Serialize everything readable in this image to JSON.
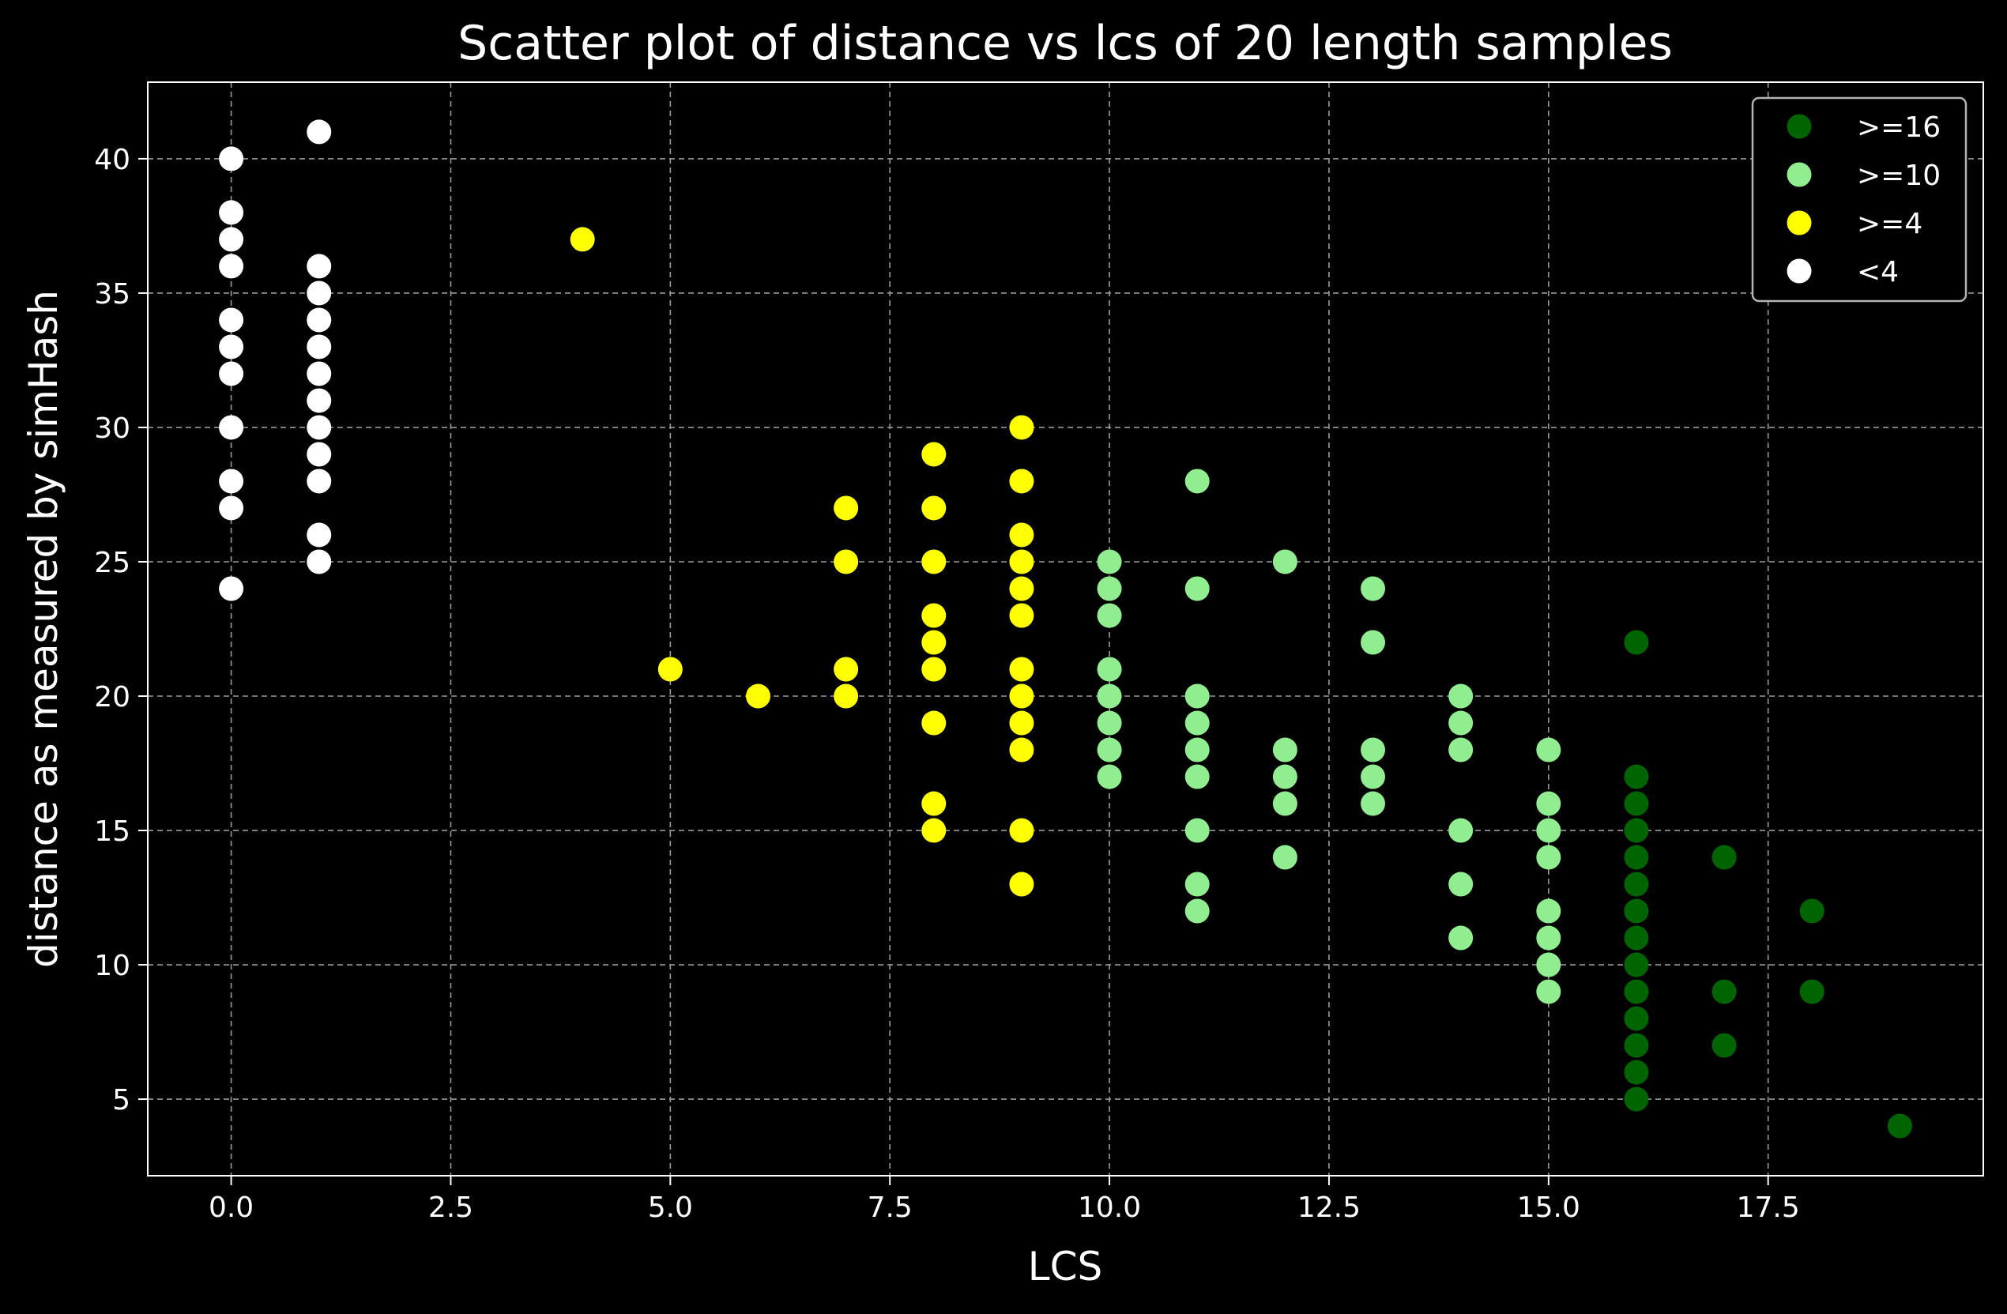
{
  "chart_data": {
    "type": "scatter",
    "title": "Scatter plot of distance vs lcs of 20 length samples",
    "xlabel": "LCS",
    "ylabel": "distance as measured by simHash",
    "xlim": [
      -0.95,
      19.95
    ],
    "ylim": [
      2.15,
      42.85
    ],
    "xticks": [
      0,
      2.5,
      5,
      7.5,
      10,
      12.5,
      15,
      17.5
    ],
    "xtick_labels": [
      "0.0",
      "2.5",
      "5.0",
      "7.5",
      "10.0",
      "12.5",
      "15.0",
      "17.5"
    ],
    "yticks": [
      5,
      10,
      15,
      20,
      25,
      30,
      35,
      40
    ],
    "ytick_labels": [
      "5",
      "10",
      "15",
      "20",
      "25",
      "30",
      "35",
      "40"
    ],
    "grid": true,
    "legend_position": "top-right",
    "background": "#000000",
    "series": [
      {
        "name": ">=16",
        "color": "#006400",
        "points": [
          [
            16,
            22
          ],
          [
            16,
            17
          ],
          [
            16,
            16
          ],
          [
            16,
            15
          ],
          [
            16,
            14
          ],
          [
            16,
            13
          ],
          [
            16,
            12
          ],
          [
            16,
            11
          ],
          [
            16,
            10
          ],
          [
            16,
            9
          ],
          [
            16,
            8
          ],
          [
            16,
            7
          ],
          [
            16,
            6
          ],
          [
            16,
            5
          ],
          [
            17,
            14
          ],
          [
            17,
            9
          ],
          [
            17,
            7
          ],
          [
            18,
            12
          ],
          [
            18,
            9
          ],
          [
            19,
            4
          ]
        ]
      },
      {
        "name": ">=10",
        "color": "#90ee90",
        "points": [
          [
            10,
            25
          ],
          [
            10,
            24
          ],
          [
            10,
            23
          ],
          [
            10,
            21
          ],
          [
            10,
            20
          ],
          [
            10,
            19
          ],
          [
            10,
            18
          ],
          [
            10,
            17
          ],
          [
            11,
            28
          ],
          [
            11,
            24
          ],
          [
            11,
            20
          ],
          [
            11,
            19
          ],
          [
            11,
            18
          ],
          [
            11,
            17
          ],
          [
            11,
            15
          ],
          [
            11,
            13
          ],
          [
            11,
            12
          ],
          [
            12,
            25
          ],
          [
            12,
            18
          ],
          [
            12,
            17
          ],
          [
            12,
            16
          ],
          [
            12,
            14
          ],
          [
            13,
            24
          ],
          [
            13,
            22
          ],
          [
            13,
            18
          ],
          [
            13,
            17
          ],
          [
            13,
            16
          ],
          [
            14,
            20
          ],
          [
            14,
            19
          ],
          [
            14,
            18
          ],
          [
            14,
            15
          ],
          [
            14,
            13
          ],
          [
            14,
            11
          ],
          [
            15,
            18
          ],
          [
            15,
            16
          ],
          [
            15,
            15
          ],
          [
            15,
            14
          ],
          [
            15,
            12
          ],
          [
            15,
            11
          ],
          [
            15,
            10
          ],
          [
            15,
            9
          ]
        ]
      },
      {
        "name": ">=4",
        "color": "#ffff00",
        "points": [
          [
            4,
            37
          ],
          [
            5,
            21
          ],
          [
            6,
            20
          ],
          [
            7,
            27
          ],
          [
            7,
            25
          ],
          [
            7,
            21
          ],
          [
            7,
            20
          ],
          [
            8,
            29
          ],
          [
            8,
            27
          ],
          [
            8,
            25
          ],
          [
            8,
            23
          ],
          [
            8,
            22
          ],
          [
            8,
            21
          ],
          [
            8,
            19
          ],
          [
            8,
            16
          ],
          [
            8,
            15
          ],
          [
            9,
            30
          ],
          [
            9,
            28
          ],
          [
            9,
            26
          ],
          [
            9,
            25
          ],
          [
            9,
            24
          ],
          [
            9,
            23
          ],
          [
            9,
            21
          ],
          [
            9,
            20
          ],
          [
            9,
            19
          ],
          [
            9,
            18
          ],
          [
            9,
            15
          ],
          [
            9,
            13
          ]
        ]
      },
      {
        "name": "<4",
        "color": "#ffffff",
        "points": [
          [
            0,
            40
          ],
          [
            0,
            38
          ],
          [
            0,
            37
          ],
          [
            0,
            36
          ],
          [
            0,
            34
          ],
          [
            0,
            33
          ],
          [
            0,
            32
          ],
          [
            0,
            30
          ],
          [
            0,
            28
          ],
          [
            0,
            27
          ],
          [
            0,
            24
          ],
          [
            1,
            41
          ],
          [
            1,
            36
          ],
          [
            1,
            35
          ],
          [
            1,
            34
          ],
          [
            1,
            33
          ],
          [
            1,
            32
          ],
          [
            1,
            31
          ],
          [
            1,
            30
          ],
          [
            1,
            29
          ],
          [
            1,
            28
          ],
          [
            1,
            26
          ],
          [
            1,
            25
          ]
        ]
      }
    ]
  }
}
